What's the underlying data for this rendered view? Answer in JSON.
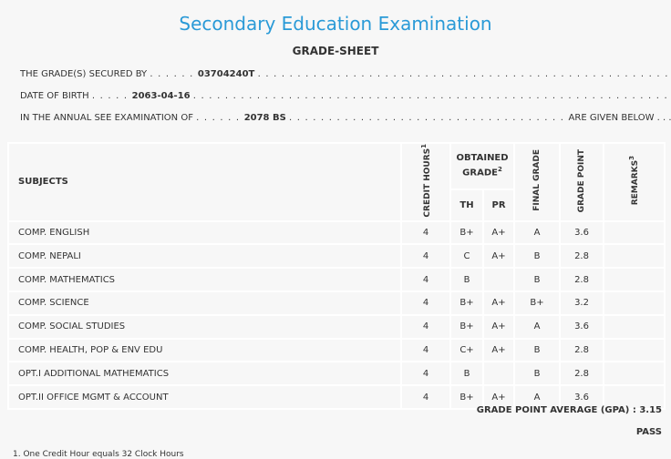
{
  "header": {
    "title": "Secondary Education Examination",
    "subtitle": "GRADE-SHEET"
  },
  "info": {
    "secured_label": "THE GRADE(S) SECURED BY",
    "secured_value": "03704240T",
    "dob_label": "DATE OF BIRTH",
    "dob_value": "2063-04-16",
    "exam_label": "IN THE ANNUAL SEE EXAMINATION OF",
    "exam_value": "2078 BS",
    "exam_suffix": "ARE GIVEN BELOW . . ."
  },
  "table": {
    "headers": {
      "subjects": "SUBJECTS",
      "credit_hours": "CREDIT HOURS",
      "credit_sup": "1",
      "obtained_grade": "OBTAINED GRADE",
      "obtained_sup": "2",
      "th": "TH",
      "pr": "PR",
      "final_grade": "FINAL GRADE",
      "grade_point": "GRADE POINT",
      "remarks": "REMARKS",
      "remarks_sup": "3"
    },
    "rows": [
      {
        "subject": "COMP. ENGLISH",
        "credit": "4",
        "th": "B+",
        "pr": "A+",
        "final": "A",
        "gp": "3.6",
        "remarks": ""
      },
      {
        "subject": "COMP. NEPALI",
        "credit": "4",
        "th": "C",
        "pr": "A+",
        "final": "B",
        "gp": "2.8",
        "remarks": ""
      },
      {
        "subject": "COMP. MATHEMATICS",
        "credit": "4",
        "th": "B",
        "pr": "",
        "final": "B",
        "gp": "2.8",
        "remarks": ""
      },
      {
        "subject": "COMP. SCIENCE",
        "credit": "4",
        "th": "B+",
        "pr": "A+",
        "final": "B+",
        "gp": "3.2",
        "remarks": ""
      },
      {
        "subject": "COMP. SOCIAL STUDIES",
        "credit": "4",
        "th": "B+",
        "pr": "A+",
        "final": "A",
        "gp": "3.6",
        "remarks": ""
      },
      {
        "subject": "COMP. HEALTH, POP & ENV EDU",
        "credit": "4",
        "th": "C+",
        "pr": "A+",
        "final": "B",
        "gp": "2.8",
        "remarks": ""
      },
      {
        "subject": "OPT.I ADDITIONAL MATHEMATICS",
        "credit": "4",
        "th": "B",
        "pr": "",
        "final": "B",
        "gp": "2.8",
        "remarks": ""
      },
      {
        "subject": "OPT.II OFFICE MGMT & ACCOUNT",
        "credit": "4",
        "th": "B+",
        "pr": "A+",
        "final": "A",
        "gp": "3.6",
        "remarks": ""
      }
    ]
  },
  "summary": {
    "gpa_label": "GRADE POINT AVERAGE (GPA) :",
    "gpa_value": "3.15",
    "result": "PASS"
  },
  "footnote": "1. One Credit Hour equals 32 Clock Hours"
}
